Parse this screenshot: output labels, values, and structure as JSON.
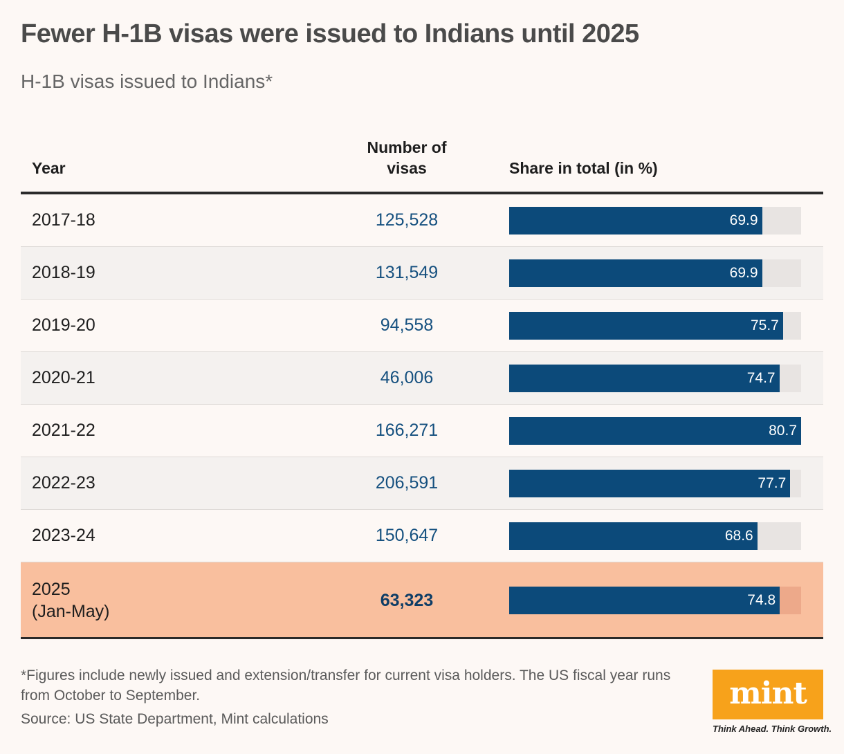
{
  "header": {
    "title": "Fewer H-1B visas were issued to Indians until 2025",
    "subtitle": "H-1B visas issued to Indians*"
  },
  "table": {
    "columns": {
      "year": "Year",
      "number": "Number of visas",
      "share": "Share in total (in %)"
    },
    "rows": [
      {
        "year": "2017-18",
        "visas": "125,528",
        "share_label": "69.9"
      },
      {
        "year": "2018-19",
        "visas": "131,549",
        "share_label": "69.9"
      },
      {
        "year": "2019-20",
        "visas": "94,558",
        "share_label": "75.7"
      },
      {
        "year": "2020-21",
        "visas": "46,006",
        "share_label": "74.7"
      },
      {
        "year": "2021-22",
        "visas": "166,271",
        "share_label": "80.7"
      },
      {
        "year": "2022-23",
        "visas": "206,591",
        "share_label": "77.7"
      },
      {
        "year": "2023-24",
        "visas": "150,647",
        "share_label": "68.6"
      },
      {
        "year": "2025\n(Jan-May)",
        "visas": "63,323",
        "share_label": "74.8",
        "highlight": true
      }
    ]
  },
  "chart_data": {
    "type": "table",
    "categories": [
      "2017-18",
      "2018-19",
      "2019-20",
      "2020-21",
      "2021-22",
      "2022-23",
      "2023-24",
      "2025 (Jan-May)"
    ],
    "series": [
      {
        "name": "Number of visas",
        "values": [
          125528,
          131549,
          94558,
          46006,
          166271,
          206591,
          150647,
          63323
        ]
      },
      {
        "name": "Share in total (in %)",
        "values": [
          69.9,
          69.9,
          75.7,
          74.7,
          80.7,
          77.7,
          68.6,
          74.8
        ]
      }
    ],
    "title": "Fewer H-1B visas were issued to Indians until 2025",
    "subtitle": "H-1B visas issued to Indians*",
    "share_max": 80.7,
    "colors": {
      "bar": "#0c4a7a",
      "track": "#e8e4e2",
      "highlight_row": "#f9bf9e",
      "numbers": "#15507f"
    }
  },
  "footer": {
    "footnote": "*Figures include newly issued and extension/transfer for current visa holders. The US fiscal year runs from October to September.",
    "source": "Source: US State Department, Mint calculations",
    "logo": "mint",
    "tagline": "Think Ahead. Think Growth."
  }
}
